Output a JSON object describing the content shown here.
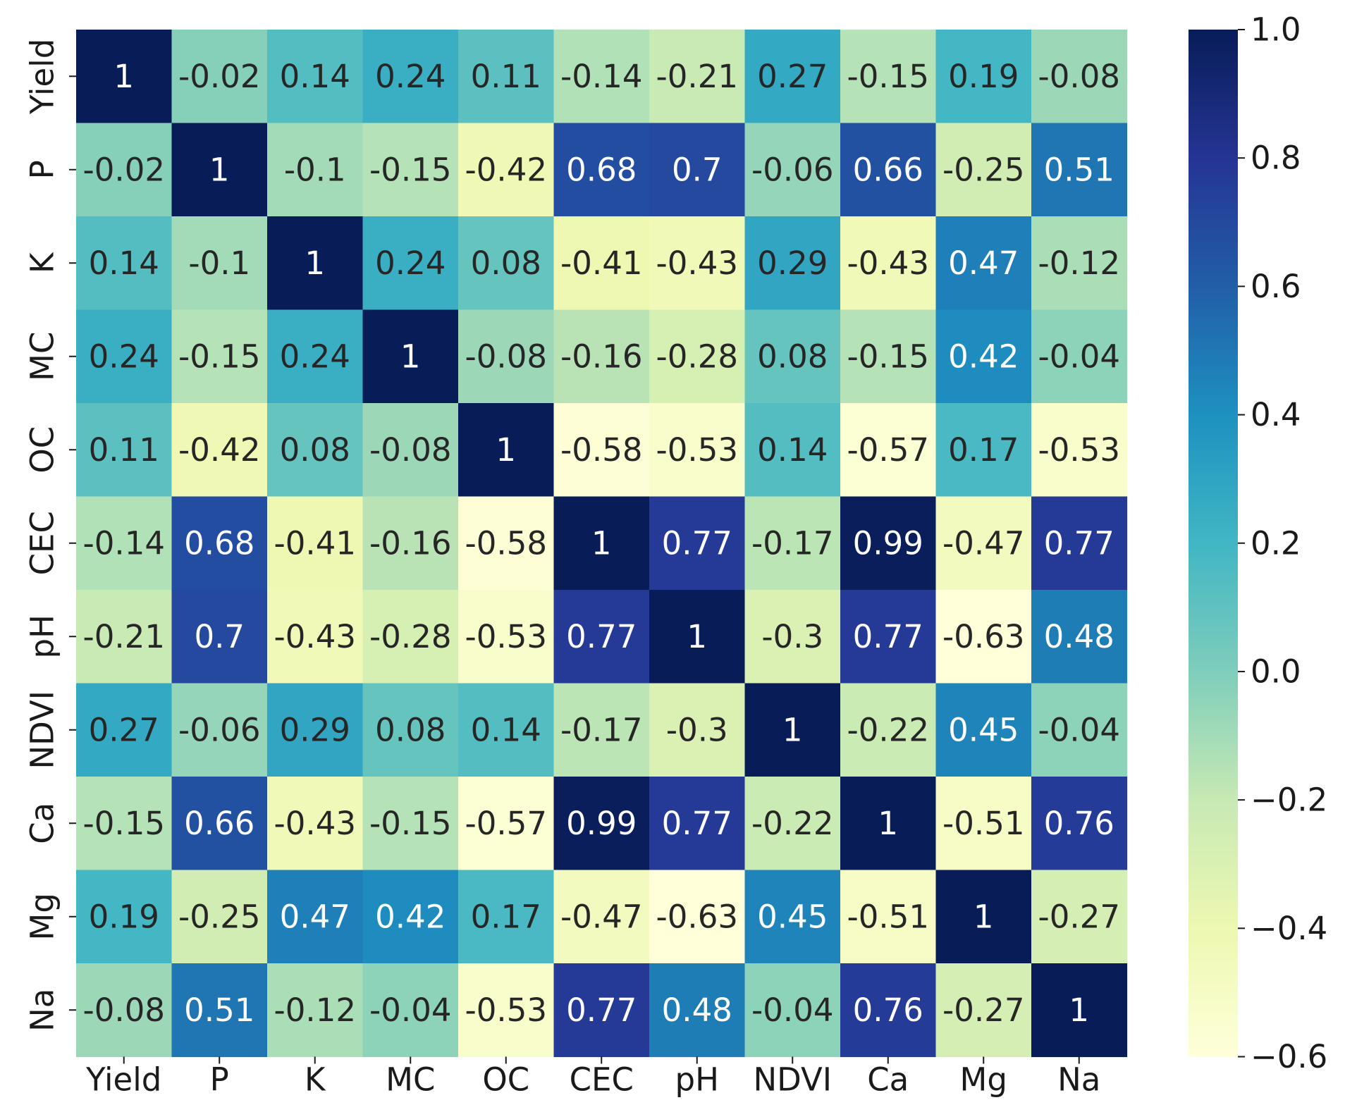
{
  "chart_data": {
    "type": "heatmap",
    "title": "",
    "xlabel": "",
    "ylabel": "",
    "x_categories": [
      "Yield",
      "P",
      "K",
      "MC",
      "OC",
      "CEC",
      "pH",
      "NDVI",
      "Ca",
      "Mg",
      "Na"
    ],
    "y_categories": [
      "Yield",
      "P",
      "K",
      "MC",
      "OC",
      "CEC",
      "pH",
      "NDVI",
      "Ca",
      "Mg",
      "Na"
    ],
    "matrix": [
      [
        1,
        -0.02,
        0.14,
        0.24,
        0.11,
        -0.14,
        -0.21,
        0.27,
        -0.15,
        0.19,
        -0.08
      ],
      [
        -0.02,
        1,
        -0.1,
        -0.15,
        -0.42,
        0.68,
        0.7,
        -0.06,
        0.66,
        -0.25,
        0.51
      ],
      [
        0.14,
        -0.1,
        1,
        0.24,
        0.08,
        -0.41,
        -0.43,
        0.29,
        -0.43,
        0.47,
        -0.12
      ],
      [
        0.24,
        -0.15,
        0.24,
        1,
        -0.08,
        -0.16,
        -0.28,
        0.08,
        -0.15,
        0.42,
        -0.04
      ],
      [
        0.11,
        -0.42,
        0.08,
        -0.08,
        1,
        -0.58,
        -0.53,
        0.14,
        -0.57,
        0.17,
        -0.53
      ],
      [
        -0.14,
        0.68,
        -0.41,
        -0.16,
        -0.58,
        1,
        0.77,
        -0.17,
        0.99,
        -0.47,
        0.77
      ],
      [
        -0.21,
        0.7,
        -0.43,
        -0.28,
        -0.53,
        0.77,
        1,
        -0.3,
        0.77,
        -0.63,
        0.48
      ],
      [
        0.27,
        -0.06,
        0.29,
        0.08,
        0.14,
        -0.17,
        -0.3,
        1,
        -0.22,
        0.45,
        -0.04
      ],
      [
        -0.15,
        0.66,
        -0.43,
        -0.15,
        -0.57,
        0.99,
        0.77,
        -0.22,
        1,
        -0.51,
        0.76
      ],
      [
        0.19,
        -0.25,
        0.47,
        0.42,
        0.17,
        -0.47,
        -0.63,
        0.45,
        -0.51,
        1,
        -0.27
      ],
      [
        -0.08,
        0.51,
        -0.12,
        -0.04,
        -0.53,
        0.77,
        0.48,
        -0.04,
        0.76,
        -0.27,
        1
      ]
    ],
    "colormap": "YlGnBu",
    "vmin": -0.6,
    "vmax": 1.0,
    "colorbar_ticks": [
      "1.0",
      "0.8",
      "0.6",
      "0.4",
      "0.2",
      "0.0",
      "−0.2",
      "−0.4",
      "−0.6"
    ],
    "colorbar_tick_values": [
      1.0,
      0.8,
      0.6,
      0.4,
      0.2,
      0.0,
      -0.2,
      -0.4,
      -0.6
    ],
    "annotated": true,
    "legend": "colorbar-right",
    "grid": false
  }
}
